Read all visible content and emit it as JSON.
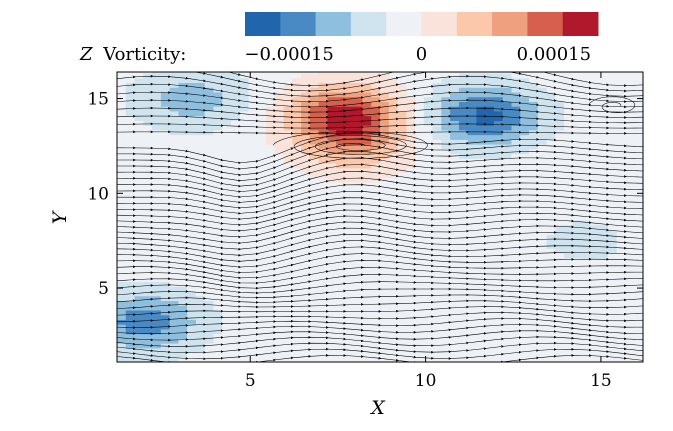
{
  "chart_data": {
    "type": "heatmap",
    "title": "",
    "xlabel": "X",
    "ylabel": "Y",
    "xlim": [
      1.2,
      16.2
    ],
    "ylim": [
      1.1,
      16.4
    ],
    "xticks": [
      5,
      10,
      15
    ],
    "yticks": [
      5,
      10,
      15
    ],
    "xtick_labels": [
      "5",
      "10",
      "15"
    ],
    "ytick_labels": [
      "5",
      "10",
      "15"
    ],
    "colorbar": {
      "variable": "Z",
      "label_suffix": "Vorticity:",
      "range": [
        -0.0002,
        0.0002
      ],
      "tick_values": [
        -0.00015,
        0,
        0.00015
      ],
      "tick_labels": [
        "−0.00015",
        "0",
        "0.00015"
      ],
      "levels": 10,
      "colors": [
        "#2166ac",
        "#4a8ac4",
        "#8fbfdf",
        "#d0e4f0",
        "#eef2f6",
        "#f9e3db",
        "#fcc8ac",
        "#eea07f",
        "#d6604d",
        "#b2182b"
      ]
    },
    "vortices": [
      {
        "x": 3.3,
        "y": 15.0,
        "strength": -8e-05
      },
      {
        "x": 7.7,
        "y": 14.2,
        "strength": 0.00018
      },
      {
        "x": 8.0,
        "y": 12.5,
        "strength": 8e-05
      },
      {
        "x": 11.7,
        "y": 14.1,
        "strength": -0.00015
      },
      {
        "x": 2.0,
        "y": 3.2,
        "strength": -0.00012
      },
      {
        "x": 14.5,
        "y": 7.5,
        "strength": -3e-05
      },
      {
        "x": 6.0,
        "y": 6.5,
        "strength": -2e-05
      }
    ],
    "streamline_note": "lower flow bends along a ridge near y≈12 with a recirculation around (8, 12.5)"
  }
}
